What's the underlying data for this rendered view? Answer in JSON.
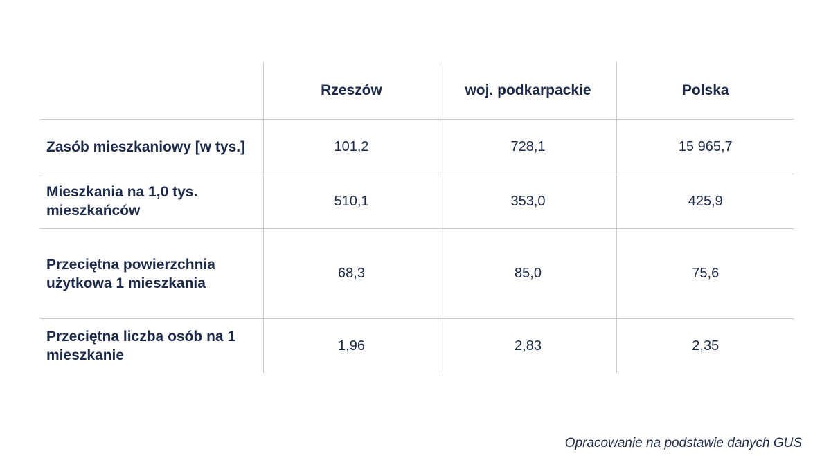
{
  "table": {
    "headers": [
      "",
      "Rzeszów",
      "woj. podkarpackie",
      "Polska"
    ],
    "rows": [
      {
        "label": "Zasób mieszkaniowy [w tys.]",
        "values": [
          "101,2",
          "728,1",
          "15 965,7"
        ]
      },
      {
        "label": "Mieszkania na 1,0 tys. mieszkańców",
        "values": [
          "510,1",
          "353,0",
          "425,9"
        ]
      },
      {
        "label": "Przeciętna powierzchnia użytkowa 1 mieszkania",
        "values": [
          "68,3",
          "85,0",
          "75,6"
        ]
      },
      {
        "label": "Przeciętna liczba osób na 1 mieszkanie",
        "values": [
          "1,96",
          "2,83",
          "2,35"
        ]
      }
    ]
  },
  "footer": {
    "source": "Opracowanie na podstawie danych GUS"
  }
}
